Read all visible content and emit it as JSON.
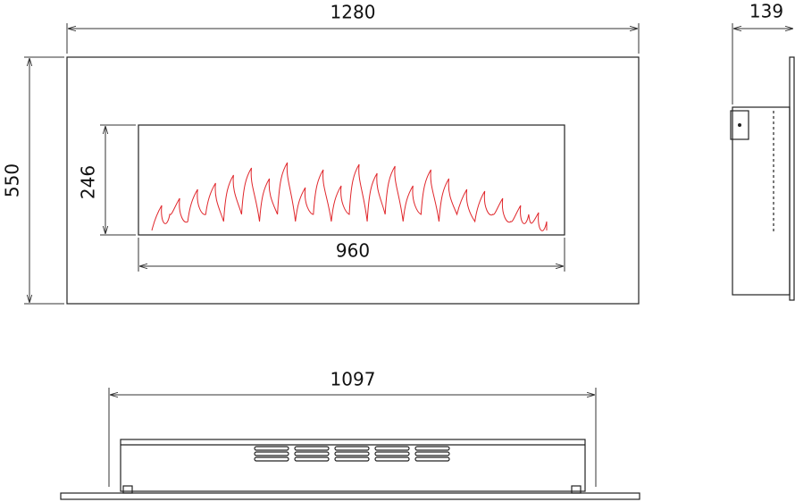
{
  "dimensions": {
    "front_width": 1280,
    "front_height": 550,
    "window_height": 246,
    "window_width": 960,
    "side_depth": 139,
    "bottom_width": 1097
  }
}
